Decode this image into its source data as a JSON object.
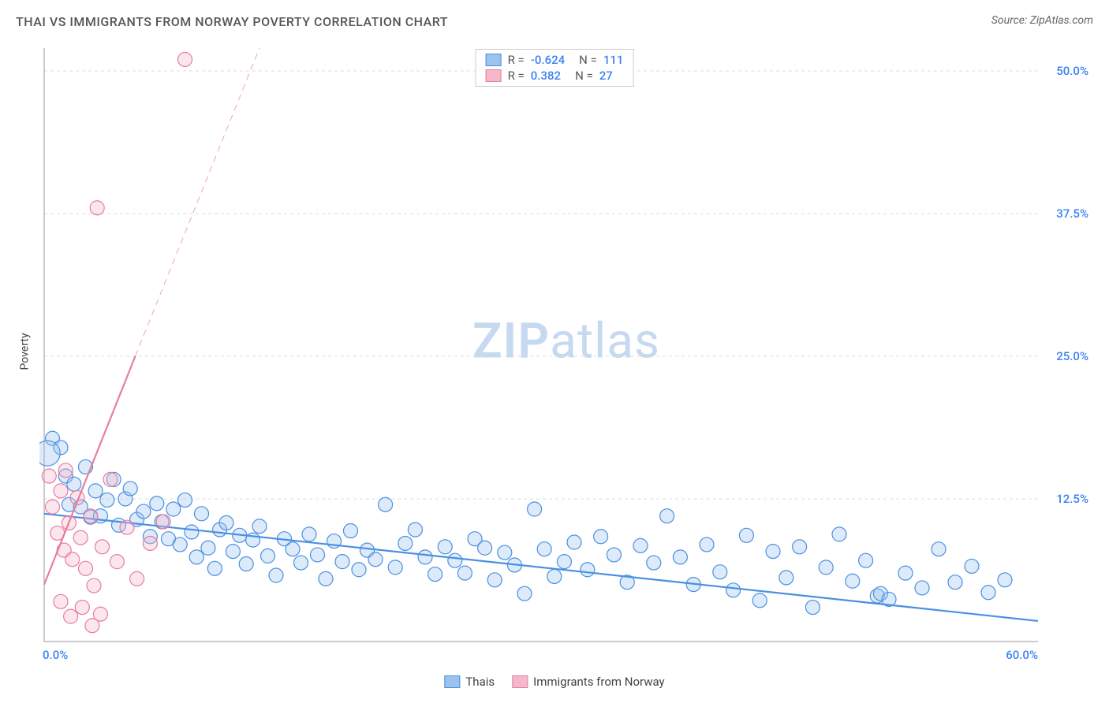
{
  "title": "THAI VS IMMIGRANTS FROM NORWAY POVERTY CORRELATION CHART",
  "source": "Source: ZipAtlas.com",
  "ylabel": "Poverty",
  "watermark": {
    "bold": "ZIP",
    "rest": "atlas",
    "color": "#c7d9f0"
  },
  "chart": {
    "type": "scatter",
    "background_color": "#ffffff",
    "grid_color": "#dddddd",
    "grid_dash": "4 4",
    "axis_color": "#999999",
    "xlim": [
      0,
      60
    ],
    "ylim": [
      0,
      52
    ],
    "x_ticks": [
      {
        "v": 0,
        "label": "0.0%"
      },
      {
        "v": 60,
        "label": "60.0%"
      }
    ],
    "y_gridlines": [
      12.5,
      25.0,
      37.5,
      50.0
    ],
    "y_tick_labels": [
      {
        "v": 12.5,
        "label": "12.5%"
      },
      {
        "v": 25.0,
        "label": "25.0%"
      },
      {
        "v": 37.5,
        "label": "37.5%"
      },
      {
        "v": 50.0,
        "label": "50.0%"
      }
    ],
    "tick_label_color": "#3b82f6",
    "tick_label_fontsize": 15,
    "marker_radius": 9,
    "marker_stroke_width": 1.2,
    "marker_fill_opacity": 0.35,
    "series": [
      {
        "name": "Thais",
        "color_stroke": "#4a90e2",
        "color_fill": "#9cc3ee",
        "R": "-0.624",
        "N": "111",
        "trend": {
          "x1": 0,
          "y1": 11.2,
          "x2": 60,
          "y2": 1.8,
          "dash": "none",
          "width": 2.2
        },
        "points": [
          [
            0.5,
            17.8
          ],
          [
            1.0,
            17.0
          ],
          [
            1.3,
            14.5
          ],
          [
            1.5,
            12.0
          ],
          [
            1.8,
            13.8
          ],
          [
            2.2,
            11.8
          ],
          [
            2.5,
            15.3
          ],
          [
            2.8,
            10.9
          ],
          [
            3.1,
            13.2
          ],
          [
            3.4,
            11.0
          ],
          [
            3.8,
            12.4
          ],
          [
            4.2,
            14.2
          ],
          [
            4.5,
            10.2
          ],
          [
            4.9,
            12.5
          ],
          [
            5.2,
            13.4
          ],
          [
            5.6,
            10.7
          ],
          [
            6.0,
            11.4
          ],
          [
            6.4,
            9.2
          ],
          [
            6.8,
            12.1
          ],
          [
            7.1,
            10.5
          ],
          [
            7.5,
            9.0
          ],
          [
            7.8,
            11.6
          ],
          [
            8.2,
            8.5
          ],
          [
            8.5,
            12.4
          ],
          [
            8.9,
            9.6
          ],
          [
            9.2,
            7.4
          ],
          [
            9.5,
            11.2
          ],
          [
            9.9,
            8.2
          ],
          [
            10.3,
            6.4
          ],
          [
            10.6,
            9.8
          ],
          [
            11.0,
            10.4
          ],
          [
            11.4,
            7.9
          ],
          [
            11.8,
            9.3
          ],
          [
            12.2,
            6.8
          ],
          [
            12.6,
            8.9
          ],
          [
            13.0,
            10.1
          ],
          [
            13.5,
            7.5
          ],
          [
            14.0,
            5.8
          ],
          [
            14.5,
            9.0
          ],
          [
            15.0,
            8.1
          ],
          [
            15.5,
            6.9
          ],
          [
            16.0,
            9.4
          ],
          [
            16.5,
            7.6
          ],
          [
            17.0,
            5.5
          ],
          [
            17.5,
            8.8
          ],
          [
            18.0,
            7.0
          ],
          [
            18.5,
            9.7
          ],
          [
            19.0,
            6.3
          ],
          [
            19.5,
            8.0
          ],
          [
            20.0,
            7.2
          ],
          [
            20.6,
            12.0
          ],
          [
            21.2,
            6.5
          ],
          [
            21.8,
            8.6
          ],
          [
            22.4,
            9.8
          ],
          [
            23.0,
            7.4
          ],
          [
            23.6,
            5.9
          ],
          [
            24.2,
            8.3
          ],
          [
            24.8,
            7.1
          ],
          [
            25.4,
            6.0
          ],
          [
            26.0,
            9.0
          ],
          [
            26.6,
            8.2
          ],
          [
            27.2,
            5.4
          ],
          [
            27.8,
            7.8
          ],
          [
            28.4,
            6.7
          ],
          [
            29.0,
            4.2
          ],
          [
            29.6,
            11.6
          ],
          [
            30.2,
            8.1
          ],
          [
            30.8,
            5.7
          ],
          [
            31.4,
            7.0
          ],
          [
            32.0,
            8.7
          ],
          [
            32.8,
            6.3
          ],
          [
            33.6,
            9.2
          ],
          [
            34.4,
            7.6
          ],
          [
            35.2,
            5.2
          ],
          [
            36.0,
            8.4
          ],
          [
            36.8,
            6.9
          ],
          [
            37.6,
            11.0
          ],
          [
            38.4,
            7.4
          ],
          [
            39.2,
            5.0
          ],
          [
            40.0,
            8.5
          ],
          [
            40.8,
            6.1
          ],
          [
            41.6,
            4.5
          ],
          [
            42.4,
            9.3
          ],
          [
            43.2,
            3.6
          ],
          [
            44.0,
            7.9
          ],
          [
            44.8,
            5.6
          ],
          [
            45.6,
            8.3
          ],
          [
            46.4,
            3.0
          ],
          [
            47.2,
            6.5
          ],
          [
            48.0,
            9.4
          ],
          [
            48.8,
            5.3
          ],
          [
            49.6,
            7.1
          ],
          [
            50.3,
            4.0
          ],
          [
            50.5,
            4.2
          ],
          [
            51.0,
            3.7
          ],
          [
            52.0,
            6.0
          ],
          [
            53.0,
            4.7
          ],
          [
            54.0,
            8.1
          ],
          [
            55.0,
            5.2
          ],
          [
            56.0,
            6.6
          ],
          [
            57.0,
            4.3
          ],
          [
            58.0,
            5.4
          ]
        ],
        "extra_points": [
          {
            "x": 0.2,
            "y": 16.5,
            "r": 16
          }
        ]
      },
      {
        "name": "Immigrants from Norway",
        "color_stroke": "#e67da0",
        "color_fill": "#f5b8cb",
        "R": "0.382",
        "N": "27",
        "trend": {
          "x1": 0,
          "y1": 5.0,
          "x2": 5.5,
          "y2": 25.0,
          "dash": "none",
          "width": 2.2
        },
        "trend_extension": {
          "x1": 5.5,
          "y1": 25.0,
          "x2": 13.0,
          "y2": 52.0,
          "dash": "8 6",
          "width": 1
        },
        "points": [
          [
            0.3,
            14.5
          ],
          [
            0.5,
            11.8
          ],
          [
            0.8,
            9.5
          ],
          [
            1.0,
            13.2
          ],
          [
            1.2,
            8.0
          ],
          [
            1.3,
            15.0
          ],
          [
            1.5,
            10.4
          ],
          [
            1.7,
            7.2
          ],
          [
            2.0,
            12.6
          ],
          [
            2.2,
            9.1
          ],
          [
            2.5,
            6.4
          ],
          [
            2.8,
            11.0
          ],
          [
            3.0,
            4.9
          ],
          [
            3.5,
            8.3
          ],
          [
            4.0,
            14.2
          ],
          [
            4.4,
            7.0
          ],
          [
            5.0,
            10.0
          ],
          [
            5.6,
            5.5
          ],
          [
            6.4,
            8.6
          ],
          [
            1.0,
            3.5
          ],
          [
            1.6,
            2.2
          ],
          [
            2.3,
            3.0
          ],
          [
            2.9,
            1.4
          ],
          [
            3.4,
            2.4
          ],
          [
            3.2,
            38.0
          ],
          [
            8.5,
            51.0
          ],
          [
            7.2,
            10.5
          ]
        ]
      }
    ]
  },
  "legend_bottom": [
    {
      "label": "Thais",
      "fill": "#9cc3ee",
      "stroke": "#4a90e2"
    },
    {
      "label": "Immigrants from Norway",
      "fill": "#f5b8cb",
      "stroke": "#e67da0"
    }
  ]
}
